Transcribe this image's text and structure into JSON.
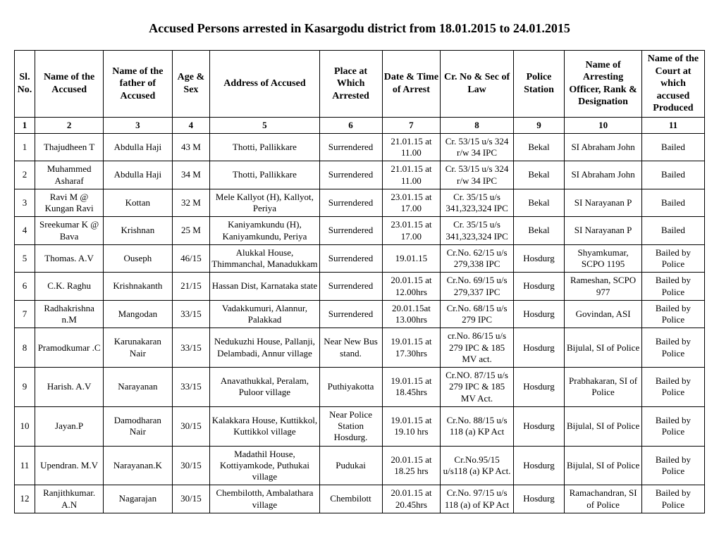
{
  "title": "Accused Persons arrested in Kasargodu  district from  18.01.2015 to 24.01.2015",
  "headers": {
    "c1": "Sl. No.",
    "c2": "Name of the Accused",
    "c3": "Name of the father of Accused",
    "c4": "Age & Sex",
    "c5": "Address of Accused",
    "c6": "Place at Which Arrested",
    "c7": "Date & Time of Arrest",
    "c8": "Cr. No & Sec of Law",
    "c9": "Police Station",
    "c10": "Name of Arresting Officer, Rank & Designation",
    "c11": "Name of the Court at which accused Produced"
  },
  "numrow": [
    "1",
    "2",
    "3",
    "4",
    "5",
    "6",
    "7",
    "8",
    "9",
    "10",
    "11"
  ],
  "rows": [
    {
      "n": "1",
      "name": "Thajudheen T",
      "father": "Abdulla Haji",
      "age": "43  M",
      "addr": "Thotti, Pallikkare",
      "place": "Surrendered",
      "dt": "21.01.15 at 11.00",
      "cr": "Cr. 53/15 u/s 324 r/w 34 IPC",
      "ps": "Bekal",
      "off": "SI Abraham John",
      "court": "Bailed"
    },
    {
      "n": "2",
      "name": "Muhammed Asharaf",
      "father": "Abdulla  Haji",
      "age": "34  M",
      "addr": "Thotti, Pallikkare",
      "place": "Surrendered",
      "dt": "21.01.15 at 11.00",
      "cr": "Cr. 53/15 u/s 324 r/w 34 IPC",
      "ps": "Bekal",
      "off": "SI Abraham John",
      "court": "Bailed"
    },
    {
      "n": "3",
      "name": "Ravi M @ Kungan Ravi",
      "father": "Kottan",
      "age": "32  M",
      "addr": "Mele Kallyot (H), Kallyot, Periya",
      "place": "Surrendered",
      "dt": "23.01.15 at 17.00",
      "cr": "Cr. 35/15 u/s 341,323,324 IPC",
      "ps": "Bekal",
      "off": "SI Narayanan P",
      "court": "Bailed"
    },
    {
      "n": "4",
      "name": "Sreekumar K @ Bava",
      "father": "Krishnan",
      "age": "25  M",
      "addr": "Kaniyamkundu (H), Kaniyamkundu, Periya",
      "place": "Surrendered",
      "dt": "23.01.15 at 17.00",
      "cr": "Cr. 35/15 u/s 341,323,324 IPC",
      "ps": "Bekal",
      "off": "SI Narayanan P",
      "court": "Bailed"
    },
    {
      "n": "5",
      "name": "Thomas. A.V",
      "father": "Ouseph",
      "age": "46/15",
      "addr": "Alukkal House, Thimmanchal, Manadukkam",
      "place": "Surrendered",
      "dt": "19.01.15",
      "cr": "Cr.No. 62/15 u/s 279,338 IPC",
      "ps": "Hosdurg",
      "off": "Shyamkumar, SCPO 1195",
      "court": "Bailed by Police"
    },
    {
      "n": "6",
      "name": "C.K. Raghu",
      "father": "Krishnakanth",
      "age": "21/15",
      "addr": "Hassan Dist, Karnataka state",
      "place": "Surrendered",
      "dt": "20.01.15 at 12.00hrs",
      "cr": "Cr.No. 69/15 u/s 279,337 IPC",
      "ps": "Hosdurg",
      "off": "Rameshan, SCPO 977",
      "court": "Bailed by Police"
    },
    {
      "n": "7",
      "name": "Radhakrishna n.M",
      "father": "Mangodan",
      "age": "33/15",
      "addr": "Vadakkumuri, Alannur, Palakkad",
      "place": "Surrendered",
      "dt": "20.01.15at 13.00hrs",
      "cr": "Cr.No. 68/15 u/s 279 IPC",
      "ps": "Hosdurg",
      "off": "Govindan, ASI",
      "court": "Bailed by Police"
    },
    {
      "n": "8",
      "name": "Pramodkumar .C",
      "father": "Karunakaran Nair",
      "age": "33/15",
      "addr": "Nedukuzhi House, Pallanji, Delambadi, Annur village",
      "place": "Near New Bus stand.",
      "dt": "19.01.15 at 17.30hrs",
      "cr": "cr.No. 86/15 u/s 279 IPC & 185 MV act.",
      "ps": "Hosdurg",
      "off": "Bijulal, SI of Police",
      "court": "Bailed by Police"
    },
    {
      "n": "9",
      "name": "Harish. A.V",
      "father": "Narayanan",
      "age": "33/15",
      "addr": "Anavathukkal, Peralam, Puloor village",
      "place": "Puthiyakotta",
      "dt": "19.01.15 at 18.45hrs",
      "cr": "Cr.NO. 87/15 u/s 279 IPC & 185 MV Act.",
      "ps": "Hosdurg",
      "off": "Prabhakaran, SI of Police",
      "court": "Bailed by Police"
    },
    {
      "n": "10",
      "name": "Jayan.P",
      "father": "Damodharan Nair",
      "age": "30/15",
      "addr": "Kalakkara House, Kuttikkol, Kuttikkol village",
      "place": "Near Police Station Hosdurg.",
      "dt": "19.01.15 at 19.10 hrs",
      "cr": "Cr.No. 88/15 u/s 118 (a) KP Act",
      "ps": "Hosdurg",
      "off": "Bijulal, SI of Police",
      "court": "Bailed by Police"
    },
    {
      "n": "11",
      "name": "Upendran. M.V",
      "father": "Narayanan.K",
      "age": "30/15",
      "addr": "Madathil House, Kottiyamkode, Puthukai village",
      "place": "Pudukai",
      "dt": "20.01.15 at 18.25 hrs",
      "cr": "Cr.No.95/15 u/s118 (a) KP Act.",
      "ps": "Hosdurg",
      "off": "Bijulal, SI of Police",
      "court": "Bailed by Police"
    },
    {
      "n": "12",
      "name": "Ranjithkumar. A.N",
      "father": "Nagarajan",
      "age": "30/15",
      "addr": "Chembilotth, Ambalathara village",
      "place": "Chembilott",
      "dt": "20.01.15 at 20.45hrs",
      "cr": "Cr.No. 97/15 u/s 118 (a) of KP Act",
      "ps": "Hosdurg",
      "off": "Ramachandran, SI of Police",
      "court": "Bailed by Police"
    }
  ]
}
